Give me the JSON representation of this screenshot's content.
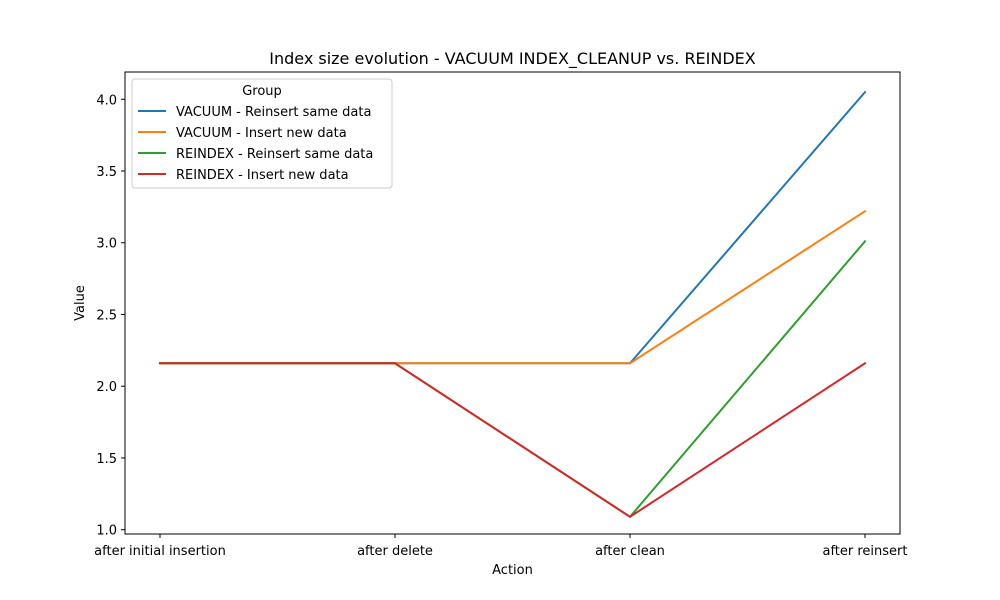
{
  "chart_data": {
    "type": "line",
    "title": "Index size evolution - VACUUM INDEX_CLEANUP vs. REINDEX",
    "xlabel": "Action",
    "ylabel": "Value",
    "categories": [
      "after initial insertion",
      "after delete",
      "after clean",
      "after reinsert"
    ],
    "ylim": [
      0.97,
      4.19
    ],
    "yticks": [
      1.0,
      1.5,
      2.0,
      2.5,
      3.0,
      3.5,
      4.0
    ],
    "ytick_labels": [
      "1.0",
      "1.5",
      "2.0",
      "2.5",
      "3.0",
      "3.5",
      "4.0"
    ],
    "grid": false,
    "legend": {
      "title": "Group",
      "placement": "top-left"
    },
    "series": [
      {
        "name": "VACUUM - Reinsert same data",
        "color": "#1f77b4",
        "values": [
          2.16,
          2.16,
          2.16,
          4.05
        ]
      },
      {
        "name": "VACUUM - Insert new data",
        "color": "#ff7f0e",
        "values": [
          2.16,
          2.16,
          2.16,
          3.22
        ]
      },
      {
        "name": "REINDEX - Reinsert same data",
        "color": "#2ca02c",
        "values": [
          2.16,
          2.16,
          1.09,
          3.01
        ]
      },
      {
        "name": "REINDEX - Insert new data",
        "color": "#d62728",
        "values": [
          2.16,
          2.16,
          1.09,
          2.16
        ]
      }
    ]
  }
}
